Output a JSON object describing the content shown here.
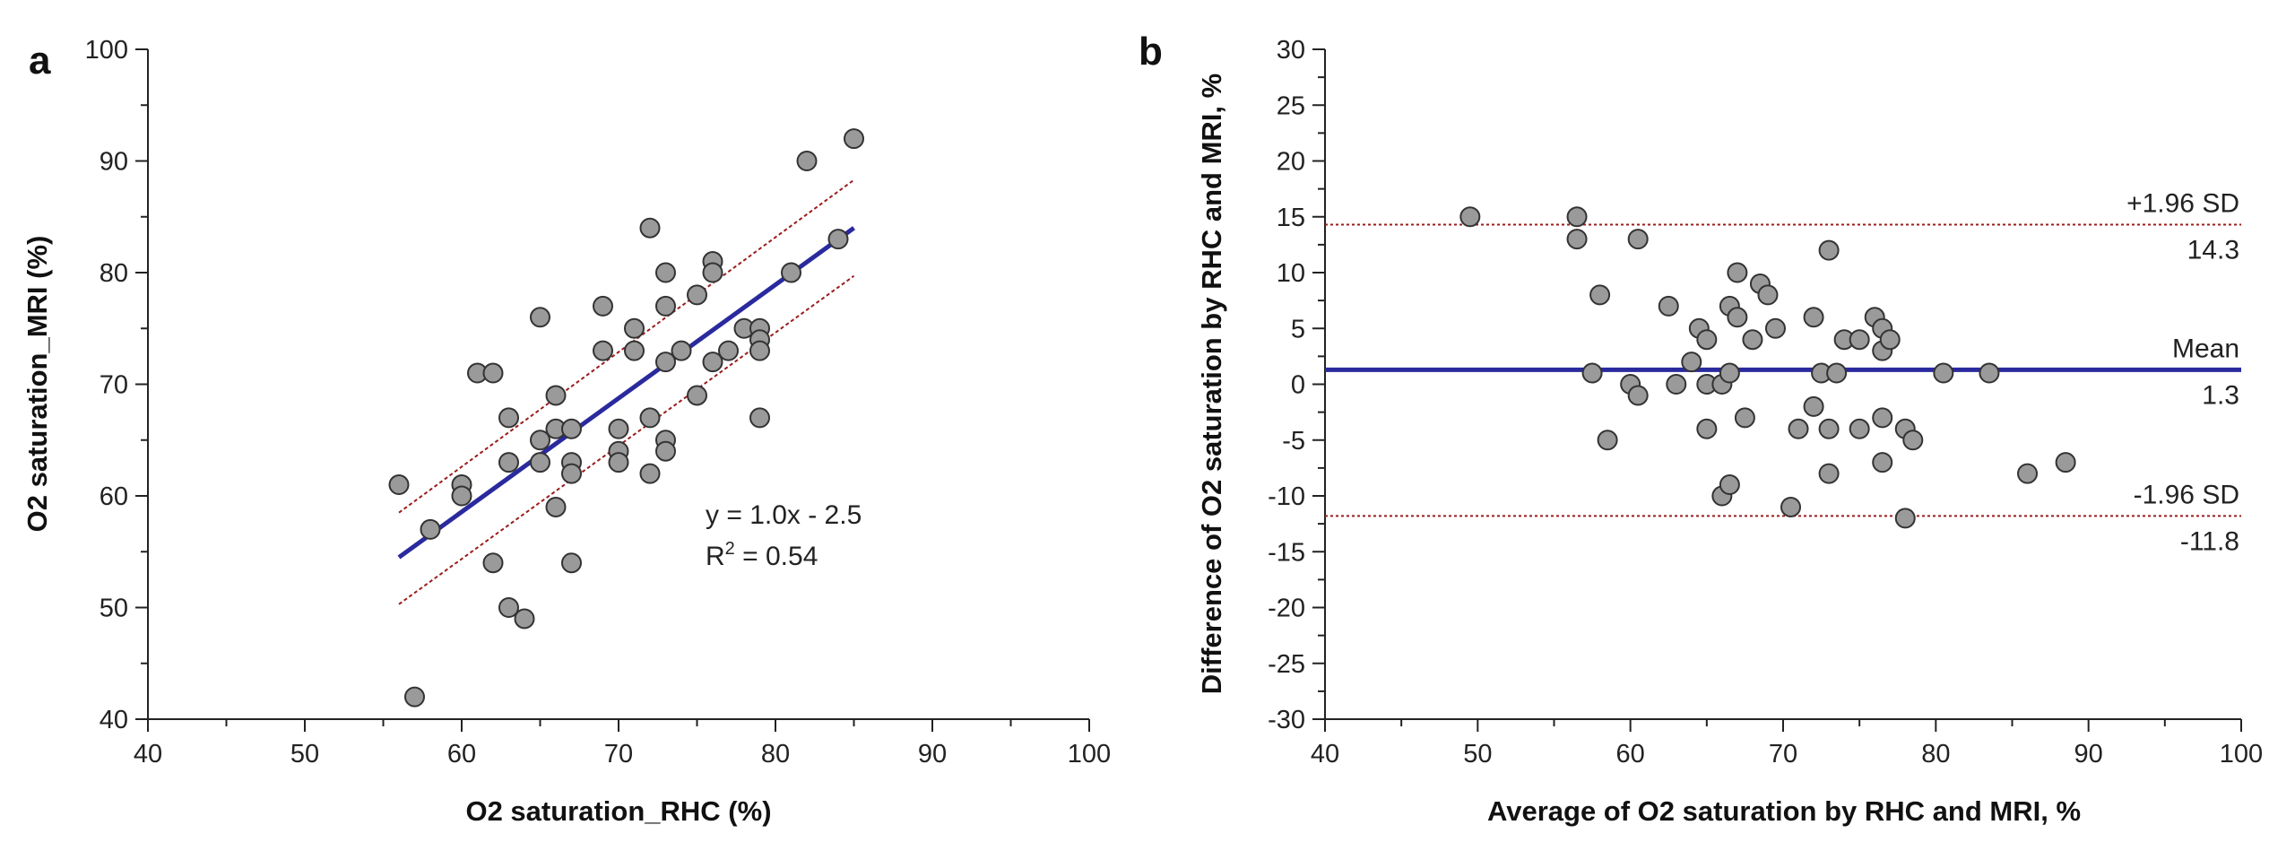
{
  "chart_data": [
    {
      "panel": "a",
      "type": "scatter",
      "title": "",
      "xlabel": "O2 saturation_RHC (%)",
      "ylabel": "O2 saturation_MRI (%)",
      "xlim": [
        40,
        100
      ],
      "ylim": [
        40,
        100
      ],
      "xticks": [
        40,
        50,
        60,
        70,
        80,
        90,
        100
      ],
      "yticks": [
        40,
        50,
        60,
        70,
        80,
        90,
        100
      ],
      "grid": false,
      "regression": {
        "x_range": [
          56,
          85
        ],
        "y_range": [
          54.5,
          84
        ],
        "equation": "y = 1.0x - 2.5",
        "r2_prefix": "R",
        "r2_sup": "2",
        "r2_value": " = 0.54",
        "line_color": "#2a2a9e",
        "ci_color": "#9b1c1c",
        "ci_upper": [
          [
            56,
            58.5
          ],
          [
            85,
            88.3
          ]
        ],
        "ci_lower": [
          [
            56,
            50.3
          ],
          [
            85,
            79.7
          ]
        ]
      },
      "points": [
        [
          56,
          61
        ],
        [
          57,
          42
        ],
        [
          58,
          57
        ],
        [
          60,
          61
        ],
        [
          60,
          60
        ],
        [
          61,
          71
        ],
        [
          62,
          71
        ],
        [
          62,
          54
        ],
        [
          63,
          67
        ],
        [
          63,
          63
        ],
        [
          63,
          50
        ],
        [
          64,
          49
        ],
        [
          65,
          76
        ],
        [
          65,
          65
        ],
        [
          65,
          63
        ],
        [
          66,
          69
        ],
        [
          66,
          66
        ],
        [
          66,
          59
        ],
        [
          67,
          66
        ],
        [
          67,
          63
        ],
        [
          67,
          62
        ],
        [
          67,
          54
        ],
        [
          69,
          77
        ],
        [
          69,
          73
        ],
        [
          70,
          66
        ],
        [
          70,
          64
        ],
        [
          70,
          63
        ],
        [
          71,
          75
        ],
        [
          71,
          73
        ],
        [
          72,
          84
        ],
        [
          72,
          67
        ],
        [
          72,
          62
        ],
        [
          73,
          80
        ],
        [
          73,
          77
        ],
        [
          73,
          72
        ],
        [
          73,
          65
        ],
        [
          73,
          64
        ],
        [
          74,
          73
        ],
        [
          75,
          78
        ],
        [
          75,
          69
        ],
        [
          76,
          81
        ],
        [
          76,
          80
        ],
        [
          76,
          72
        ],
        [
          77,
          73
        ],
        [
          78,
          75
        ],
        [
          79,
          75
        ],
        [
          79,
          74
        ],
        [
          79,
          73
        ],
        [
          79,
          67
        ],
        [
          81,
          80
        ],
        [
          82,
          90
        ],
        [
          84,
          83
        ],
        [
          85,
          92
        ]
      ]
    },
    {
      "panel": "b",
      "type": "scatter",
      "title": "",
      "xlabel": "Average of O2 saturation by RHC and MRI, %",
      "ylabel": "Difference of O2 saturation by RHC and MRI, %",
      "xlim": [
        40,
        100
      ],
      "ylim": [
        -30,
        30
      ],
      "xticks": [
        40,
        50,
        60,
        70,
        80,
        90,
        100
      ],
      "yticks": [
        -30,
        -25,
        -20,
        -15,
        -10,
        -5,
        0,
        5,
        10,
        15,
        20,
        25,
        30
      ],
      "grid": false,
      "reference_lines": [
        {
          "name": "upper-loa",
          "value": 14.3,
          "label": "+1.96 SD",
          "value_label": "14.3",
          "style": "dotted",
          "color": "#9b1c1c"
        },
        {
          "name": "mean",
          "value": 1.3,
          "label": "Mean",
          "value_label": "1.3",
          "style": "solid",
          "color": "#2a2a9e"
        },
        {
          "name": "lower-loa",
          "value": -11.8,
          "label": "-1.96 SD",
          "value_label": "-11.8",
          "style": "dotted",
          "color": "#9b1c1c"
        }
      ],
      "points": [
        [
          49.5,
          15
        ],
        [
          56.5,
          15
        ],
        [
          56.5,
          13
        ],
        [
          57.5,
          1
        ],
        [
          58,
          8
        ],
        [
          58.5,
          -5
        ],
        [
          60,
          0
        ],
        [
          60.5,
          -1
        ],
        [
          60.5,
          13
        ],
        [
          62.5,
          7
        ],
        [
          63,
          0
        ],
        [
          64,
          2
        ],
        [
          64.5,
          5
        ],
        [
          65,
          4
        ],
        [
          65,
          0
        ],
        [
          65,
          -4
        ],
        [
          66,
          0
        ],
        [
          66,
          -10
        ],
        [
          66.5,
          7
        ],
        [
          66.5,
          1
        ],
        [
          66.5,
          -9
        ],
        [
          67,
          10
        ],
        [
          67,
          6
        ],
        [
          67.5,
          -3
        ],
        [
          68,
          4
        ],
        [
          68.5,
          9
        ],
        [
          69,
          8
        ],
        [
          69.5,
          5
        ],
        [
          70.5,
          -11
        ],
        [
          71,
          -4
        ],
        [
          72,
          6
        ],
        [
          72,
          -2
        ],
        [
          72.5,
          1
        ],
        [
          73,
          12
        ],
        [
          73,
          -4
        ],
        [
          73,
          -8
        ],
        [
          73.5,
          1
        ],
        [
          74,
          4
        ],
        [
          75,
          4
        ],
        [
          75,
          -4
        ],
        [
          76,
          6
        ],
        [
          76.5,
          5
        ],
        [
          76.5,
          3
        ],
        [
          76.5,
          -3
        ],
        [
          76.5,
          -7
        ],
        [
          77,
          4
        ],
        [
          78,
          -4
        ],
        [
          78,
          -12
        ],
        [
          78.5,
          -5
        ],
        [
          80.5,
          1
        ],
        [
          83.5,
          1
        ],
        [
          86,
          -8
        ],
        [
          88.5,
          -7
        ]
      ]
    }
  ]
}
